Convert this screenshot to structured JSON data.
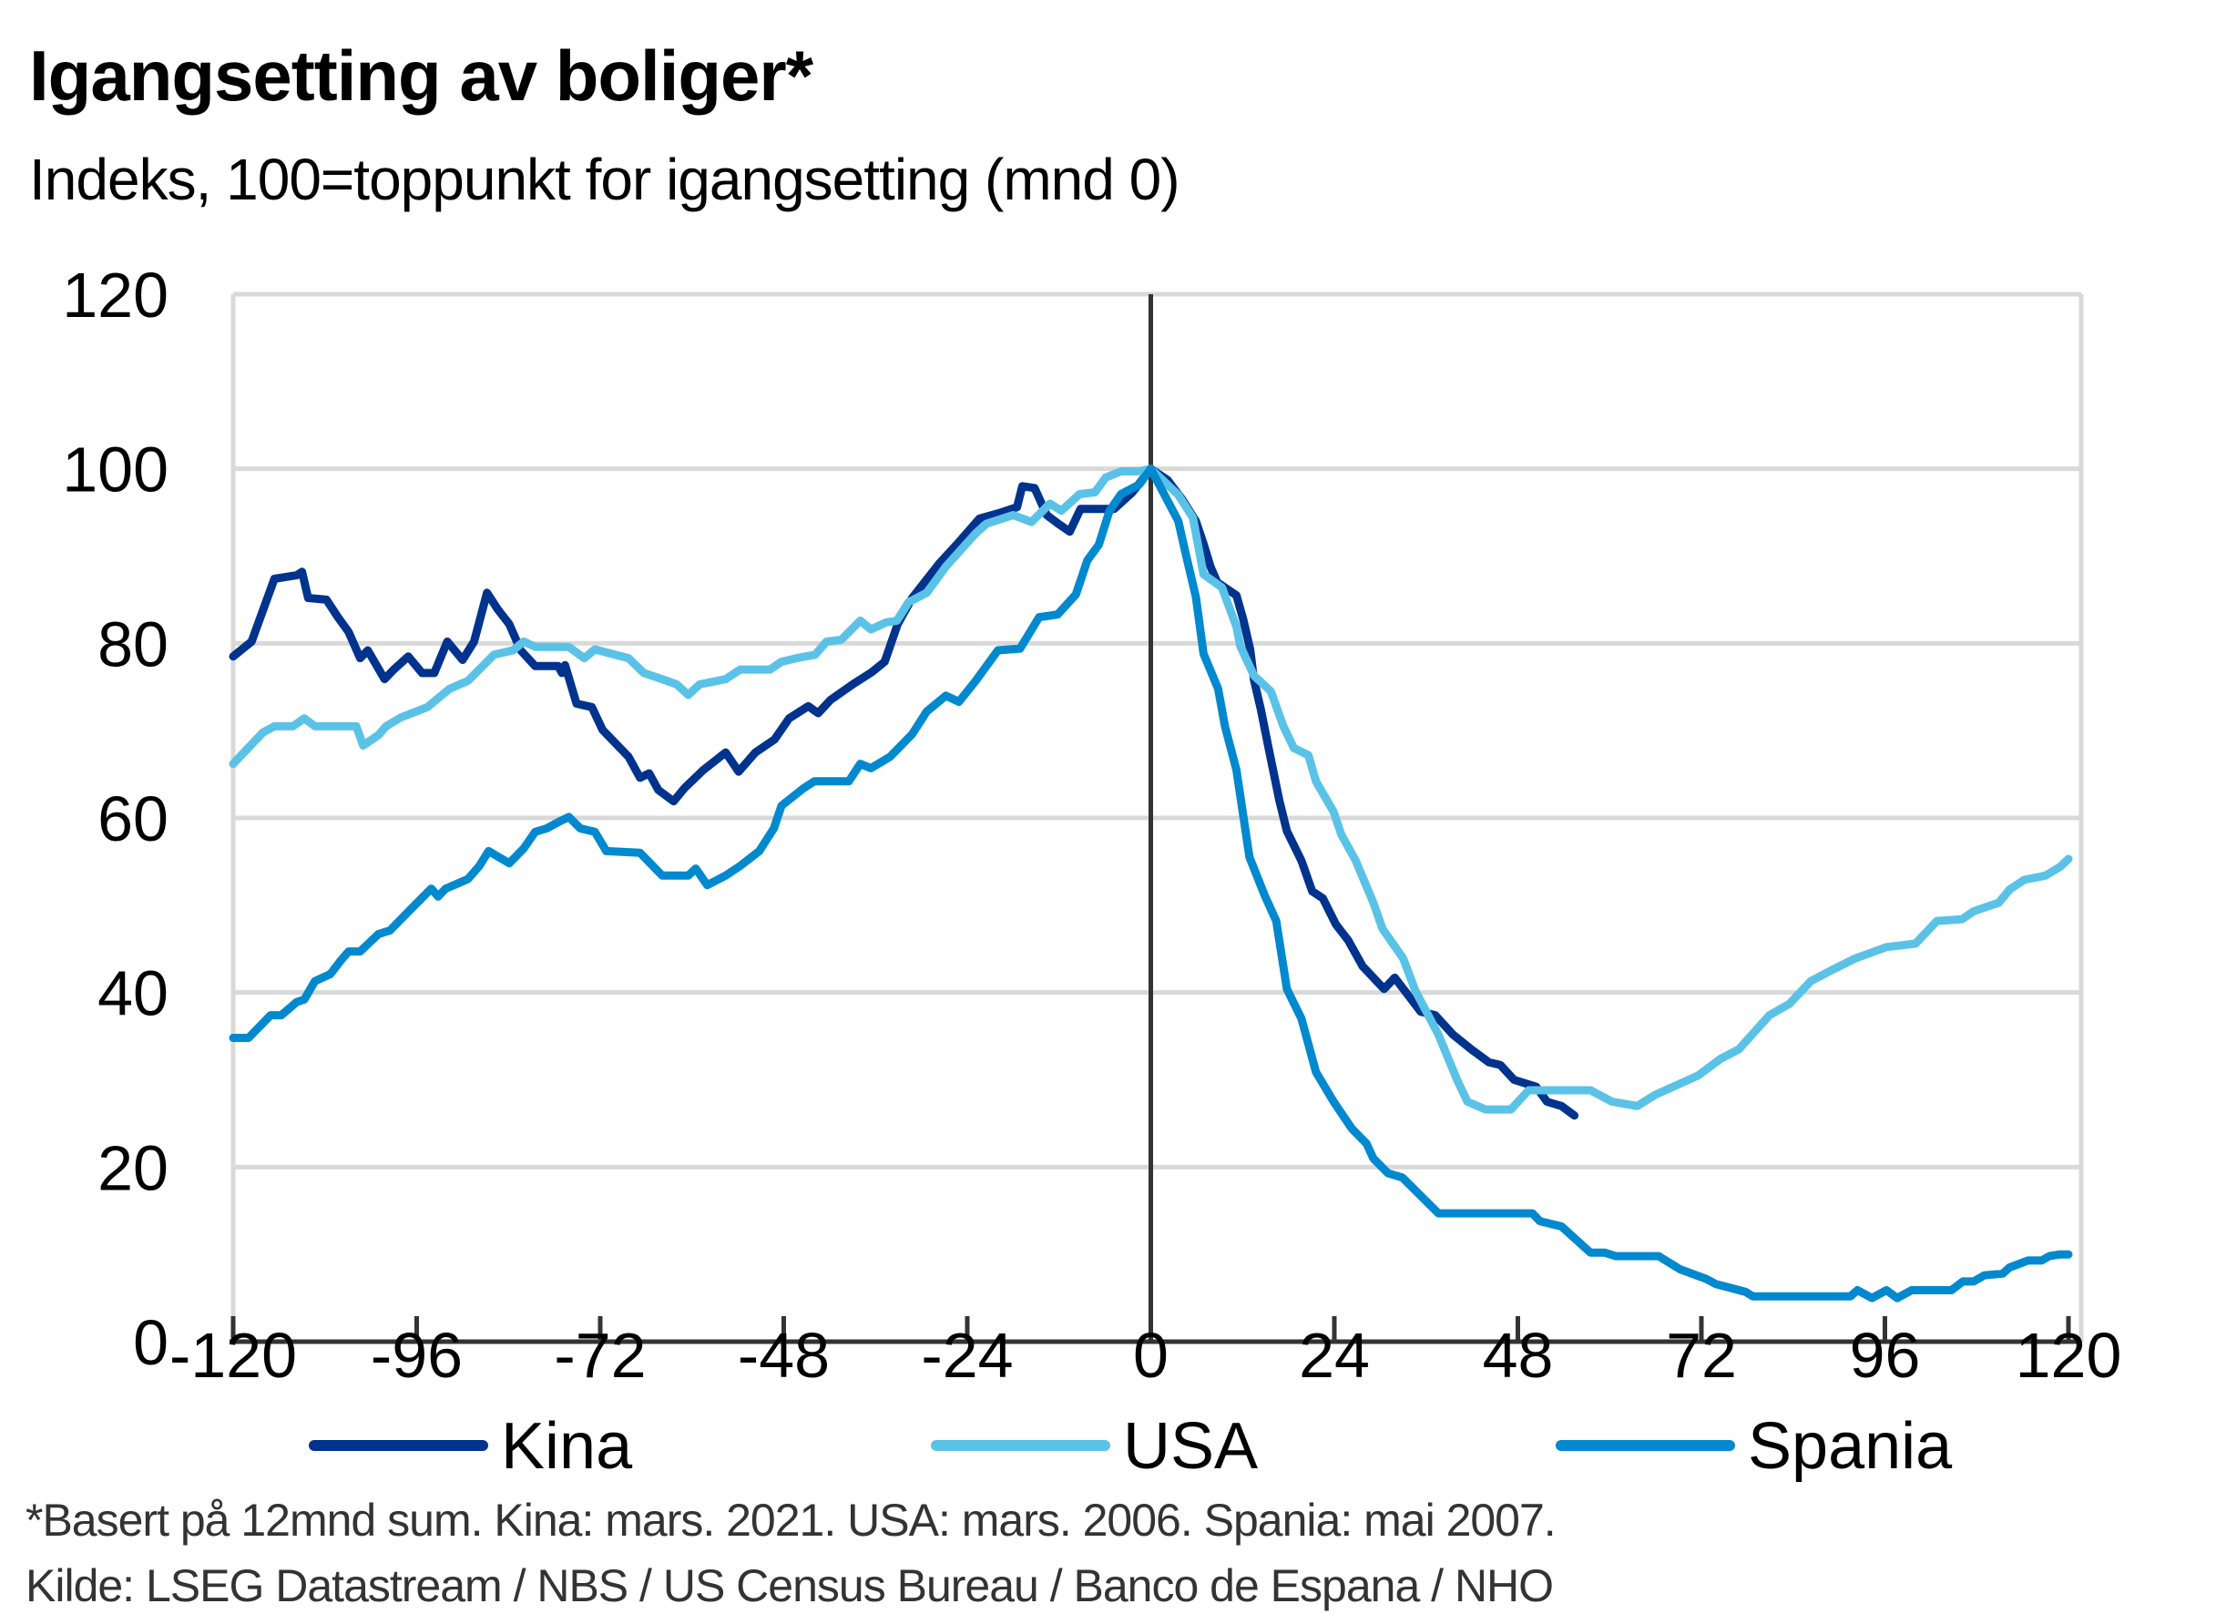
{
  "chart_data": {
    "type": "line",
    "title": "Igangsetting av boliger*",
    "subtitle": "Indeks, 100=toppunkt for igangsetting (mnd 0)",
    "xlabel": "",
    "ylabel": "",
    "xlim": [
      -120,
      120
    ],
    "ylim": [
      0,
      120
    ],
    "xticks": [
      -120,
      -96,
      -72,
      -48,
      -24,
      0,
      24,
      48,
      72,
      96,
      120
    ],
    "yticks": [
      0,
      20,
      40,
      60,
      80,
      100,
      120
    ],
    "grid": true,
    "legend_position": "bottom",
    "series": [
      {
        "name": "Kina",
        "color": "#00338D",
        "points": [
          [
            -120,
            78.5
          ],
          [
            -117.6,
            80.2
          ],
          [
            -114.6,
            87.4
          ],
          [
            -111.7,
            87.8
          ],
          [
            -111,
            88.2
          ],
          [
            -110.2,
            85.2
          ],
          [
            -107.8,
            85
          ],
          [
            -106.3,
            83
          ],
          [
            -104.9,
            81.3
          ],
          [
            -103.4,
            78.3
          ],
          [
            -102.4,
            79.2
          ],
          [
            -100.2,
            75.9
          ],
          [
            -99,
            77
          ],
          [
            -97.1,
            78.5
          ],
          [
            -95.3,
            76.6
          ],
          [
            -93.7,
            76.6
          ],
          [
            -92,
            80.2
          ],
          [
            -90,
            78.1
          ],
          [
            -88.5,
            80.2
          ],
          [
            -86.8,
            85.8
          ],
          [
            -85.4,
            83.9
          ],
          [
            -83.9,
            82.2
          ],
          [
            -82.4,
            79.2
          ],
          [
            -80.5,
            77.4
          ],
          [
            -77.5,
            77.4
          ],
          [
            -77,
            76.6
          ],
          [
            -76.6,
            77.5
          ],
          [
            -75.1,
            73.1
          ],
          [
            -73.1,
            72.7
          ],
          [
            -71.7,
            70.1
          ],
          [
            -68.3,
            67
          ],
          [
            -66.8,
            64.6
          ],
          [
            -65.6,
            65.1
          ],
          [
            -64.4,
            63.2
          ],
          [
            -62.4,
            61.9
          ],
          [
            -61,
            63.4
          ],
          [
            -58.5,
            65.5
          ],
          [
            -55.6,
            67.5
          ],
          [
            -53.9,
            65.3
          ],
          [
            -51.7,
            67.5
          ],
          [
            -49.2,
            69
          ],
          [
            -47.3,
            71.4
          ],
          [
            -44.8,
            72.8
          ],
          [
            -43.5,
            72
          ],
          [
            -41.9,
            73.5
          ],
          [
            -39,
            75.3
          ],
          [
            -36.5,
            76.7
          ],
          [
            -34.8,
            77.9
          ],
          [
            -33.1,
            82.2
          ],
          [
            -31.2,
            85.2
          ],
          [
            -27.7,
            89.1
          ],
          [
            -25.3,
            91.4
          ],
          [
            -22.4,
            94.3
          ],
          [
            -19.9,
            94.9
          ],
          [
            -17.5,
            95.6
          ],
          [
            -16.8,
            98
          ],
          [
            -15.2,
            97.8
          ],
          [
            -13.6,
            94.7
          ],
          [
            -12.1,
            93.7
          ],
          [
            -10.6,
            92.8
          ],
          [
            -9.2,
            95.4
          ],
          [
            -4.8,
            95.4
          ],
          [
            -2.4,
            97.3
          ],
          [
            0,
            100
          ],
          [
            2.2,
            98.7
          ],
          [
            4.1,
            96.5
          ],
          [
            5.9,
            94
          ],
          [
            6.9,
            91.4
          ],
          [
            7.8,
            88.8
          ],
          [
            8.7,
            87
          ],
          [
            11.2,
            85.5
          ],
          [
            12.1,
            82.7
          ],
          [
            13,
            79.3
          ],
          [
            13.5,
            75.8
          ],
          [
            14.4,
            72.4
          ],
          [
            15.4,
            68
          ],
          [
            16.8,
            62
          ],
          [
            17.8,
            58.5
          ],
          [
            19.7,
            55.1
          ],
          [
            21.1,
            51.6
          ],
          [
            22.5,
            50.8
          ],
          [
            24.2,
            47.8
          ],
          [
            25.8,
            46
          ],
          [
            27.7,
            43
          ],
          [
            30.5,
            40.4
          ],
          [
            31.9,
            41.7
          ],
          [
            35.3,
            37.8
          ],
          [
            37.2,
            37.4
          ],
          [
            39.5,
            35.2
          ],
          [
            41.9,
            33.5
          ],
          [
            44.2,
            32
          ],
          [
            45.7,
            31.7
          ],
          [
            47.5,
            30
          ],
          [
            50.4,
            29.2
          ],
          [
            51.8,
            27.5
          ],
          [
            53.7,
            27
          ],
          [
            55.4,
            25.9
          ]
        ]
      },
      {
        "name": "USA",
        "color": "#5BC2E7",
        "points": [
          [
            -120,
            66.2
          ],
          [
            -116.1,
            69.8
          ],
          [
            -114.6,
            70.5
          ],
          [
            -112.2,
            70.5
          ],
          [
            -110.7,
            71.4
          ],
          [
            -109.3,
            70.5
          ],
          [
            -103.9,
            70.5
          ],
          [
            -103,
            68.3
          ],
          [
            -101,
            69.5
          ],
          [
            -100,
            70.5
          ],
          [
            -98.1,
            71.5
          ],
          [
            -94.6,
            72.7
          ],
          [
            -91.7,
            74.8
          ],
          [
            -89.3,
            75.7
          ],
          [
            -85.9,
            78.7
          ],
          [
            -83.4,
            79.2
          ],
          [
            -82,
            80.2
          ],
          [
            -80.5,
            79.6
          ],
          [
            -76.1,
            79.6
          ],
          [
            -74.1,
            78.3
          ],
          [
            -72.7,
            79.3
          ],
          [
            -68.3,
            78.3
          ],
          [
            -66.3,
            76.6
          ],
          [
            -63.9,
            75.9
          ],
          [
            -62,
            75.3
          ],
          [
            -60.5,
            74.1
          ],
          [
            -59,
            75.3
          ],
          [
            -55.6,
            75.9
          ],
          [
            -53.7,
            77
          ],
          [
            -49.8,
            77
          ],
          [
            -48.3,
            77.9
          ],
          [
            -46.3,
            78.3
          ],
          [
            -43.9,
            78.7
          ],
          [
            -42.4,
            80.2
          ],
          [
            -40.5,
            80.4
          ],
          [
            -38,
            82.6
          ],
          [
            -36.6,
            81.6
          ],
          [
            -34.6,
            82.4
          ],
          [
            -33.2,
            82.6
          ],
          [
            -31.7,
            84.7
          ],
          [
            -29.3,
            85.8
          ],
          [
            -26.8,
            88.8
          ],
          [
            -22.9,
            92.6
          ],
          [
            -21.5,
            93.7
          ],
          [
            -18,
            94.7
          ],
          [
            -15.6,
            93.9
          ],
          [
            -13.2,
            96
          ],
          [
            -11.7,
            95.2
          ],
          [
            -9.3,
            97.1
          ],
          [
            -7.3,
            97.3
          ],
          [
            -5.9,
            99
          ],
          [
            -3.9,
            99.7
          ],
          [
            -1.5,
            99.7
          ],
          [
            0,
            100
          ],
          [
            3.6,
            97
          ],
          [
            5.5,
            94.4
          ],
          [
            6.9,
            87.9
          ],
          [
            9.3,
            86.4
          ],
          [
            11.2,
            81.9
          ],
          [
            11.7,
            79.7
          ],
          [
            13.5,
            76.3
          ],
          [
            15.7,
            74.5
          ],
          [
            17.3,
            70.6
          ],
          [
            18.7,
            68
          ],
          [
            20.6,
            67.2
          ],
          [
            21.6,
            64.2
          ],
          [
            23.9,
            60.7
          ],
          [
            24.9,
            58.1
          ],
          [
            26.8,
            55.1
          ],
          [
            29.1,
            50.3
          ],
          [
            30.3,
            47.3
          ],
          [
            33,
            43.9
          ],
          [
            34.6,
            40.2
          ],
          [
            37.6,
            35.2
          ],
          [
            40,
            30.1
          ],
          [
            41.4,
            27.5
          ],
          [
            43.8,
            26.6
          ],
          [
            47.1,
            26.6
          ],
          [
            49.4,
            28.8
          ],
          [
            57.5,
            28.8
          ],
          [
            60.3,
            27.5
          ],
          [
            63.6,
            27
          ],
          [
            66,
            28.3
          ],
          [
            68.3,
            29.2
          ],
          [
            71.6,
            30.5
          ],
          [
            74.5,
            32.4
          ],
          [
            76.9,
            33.5
          ],
          [
            80.9,
            37.4
          ],
          [
            83.5,
            38.7
          ],
          [
            86.3,
            41.3
          ],
          [
            89.1,
            42.6
          ],
          [
            92.1,
            43.9
          ],
          [
            96.2,
            45.2
          ],
          [
            100,
            45.6
          ],
          [
            102.8,
            48.2
          ],
          [
            106.1,
            48.4
          ],
          [
            107.6,
            49.3
          ],
          [
            110.9,
            50.3
          ],
          [
            112.3,
            51.8
          ],
          [
            114.2,
            52.9
          ],
          [
            117,
            53.4
          ],
          [
            118.9,
            54.4
          ],
          [
            120,
            55.3
          ]
        ]
      },
      {
        "name": "Spania",
        "color": "#0089CF",
        "points": [
          [
            -120,
            34.8
          ],
          [
            -118,
            34.8
          ],
          [
            -115.1,
            37.4
          ],
          [
            -113.7,
            37.4
          ],
          [
            -111.7,
            38.9
          ],
          [
            -110.7,
            39.2
          ],
          [
            -109.3,
            41.3
          ],
          [
            -107.3,
            42.1
          ],
          [
            -105.9,
            43.7
          ],
          [
            -104.9,
            44.7
          ],
          [
            -103.4,
            44.7
          ],
          [
            -101,
            46.7
          ],
          [
            -99.5,
            47.1
          ],
          [
            -96.6,
            49.7
          ],
          [
            -94.1,
            51.9
          ],
          [
            -93.2,
            51
          ],
          [
            -92.2,
            51.9
          ],
          [
            -89.3,
            53
          ],
          [
            -87.8,
            54.5
          ],
          [
            -86.6,
            56.2
          ],
          [
            -83.9,
            54.8
          ],
          [
            -82,
            56.5
          ],
          [
            -80.5,
            58.4
          ],
          [
            -79,
            58.8
          ],
          [
            -77.1,
            59.7
          ],
          [
            -76.1,
            60.1
          ],
          [
            -74.6,
            58.8
          ],
          [
            -72.7,
            58.4
          ],
          [
            -71.2,
            56.2
          ],
          [
            -66.8,
            56
          ],
          [
            -63.9,
            53.4
          ],
          [
            -60.5,
            53.4
          ],
          [
            -59.5,
            54.2
          ],
          [
            -58,
            52.3
          ],
          [
            -55.6,
            53.4
          ],
          [
            -53.7,
            54.5
          ],
          [
            -51.2,
            56.2
          ],
          [
            -49.3,
            58.8
          ],
          [
            -48.3,
            61.4
          ],
          [
            -45.4,
            63.4
          ],
          [
            -44,
            64.2
          ],
          [
            -39.5,
            64.2
          ],
          [
            -38,
            66.2
          ],
          [
            -36.6,
            65.7
          ],
          [
            -34.1,
            67
          ],
          [
            -31.2,
            69.6
          ],
          [
            -29.3,
            72.2
          ],
          [
            -26.8,
            74
          ],
          [
            -25.1,
            73.3
          ],
          [
            -22.9,
            75.7
          ],
          [
            -20,
            79.2
          ],
          [
            -17.1,
            79.4
          ],
          [
            -14.6,
            83
          ],
          [
            -12.2,
            83.3
          ],
          [
            -9.8,
            85.6
          ],
          [
            -8.3,
            89.5
          ],
          [
            -6.8,
            91.3
          ],
          [
            -5.4,
            95.2
          ],
          [
            -3.9,
            97.1
          ],
          [
            -1.5,
            98.2
          ],
          [
            0,
            100
          ],
          [
            3.6,
            94
          ],
          [
            4.5,
            90.5
          ],
          [
            5.9,
            85.3
          ],
          [
            6.9,
            78.8
          ],
          [
            8.8,
            74.8
          ],
          [
            9.7,
            70.5
          ],
          [
            11.2,
            65.5
          ],
          [
            12.9,
            55.5
          ],
          [
            14.9,
            51.1
          ],
          [
            16.4,
            48.2
          ],
          [
            17.8,
            40.4
          ],
          [
            19.7,
            37
          ],
          [
            21.6,
            30.9
          ],
          [
            23.9,
            27.5
          ],
          [
            26.3,
            24.4
          ],
          [
            28.2,
            22.7
          ],
          [
            29.1,
            21
          ],
          [
            31,
            19.3
          ],
          [
            32.9,
            18.8
          ],
          [
            37.6,
            14.7
          ],
          [
            49.9,
            14.7
          ],
          [
            50.9,
            13.8
          ],
          [
            53.7,
            13.2
          ],
          [
            57.5,
            10.2
          ],
          [
            59.4,
            10.2
          ],
          [
            60.8,
            9.8
          ],
          [
            66.4,
            9.8
          ],
          [
            69.2,
            8.3
          ],
          [
            72.6,
            7.2
          ],
          [
            73.9,
            6.6
          ],
          [
            77.8,
            5.7
          ],
          [
            78.7,
            5.2
          ],
          [
            91.5,
            5.2
          ],
          [
            92.4,
            5.9
          ],
          [
            94.3,
            5
          ],
          [
            96.2,
            5.9
          ],
          [
            97.6,
            5
          ],
          [
            99.5,
            5.9
          ],
          [
            104.7,
            5.9
          ],
          [
            106.2,
            6.9
          ],
          [
            107.6,
            6.9
          ],
          [
            109,
            7.6
          ],
          [
            111.4,
            7.8
          ],
          [
            112.3,
            8.5
          ],
          [
            114.7,
            9.3
          ],
          [
            116.5,
            9.3
          ],
          [
            117.5,
            9.8
          ],
          [
            118.9,
            10
          ],
          [
            120,
            10
          ]
        ]
      }
    ],
    "footnote": "*Basert på 12mnd sum. Kina: mars. 2021. USA: mars. 2006. Spania: mai 2007.",
    "source": "Kilde: LSEG Datastream / NBS / US Census Bureau / Banco de Espana / NHO"
  }
}
